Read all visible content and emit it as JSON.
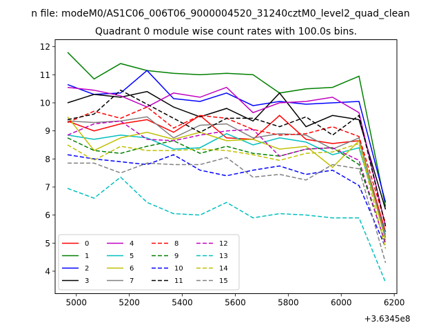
{
  "header": {
    "suptitle": "n file: modeM0/AS1C06_006T06_9000004520_31240cztM0_level2_quad_clean",
    "title": "Quadrant 0 module wise count rates with 100.0s bins."
  },
  "chart_data": {
    "type": "line",
    "title": "Quadrant 0 module wise count rates with 100.0s bins.",
    "xlabel": "",
    "ylabel": "",
    "x_offset_label": "+3.6345e8",
    "xlim": [
      4920,
      6210
    ],
    "ylim": [
      3.2,
      12.25
    ],
    "x_ticks": [
      5000,
      5200,
      5400,
      5600,
      5800,
      6000,
      6200
    ],
    "y_ticks": [
      4,
      5,
      6,
      7,
      8,
      9,
      10,
      11,
      12
    ],
    "grid": false,
    "legend_position": "lower-left",
    "legend_columns": 4,
    "x": [
      4967,
      5067,
      5167,
      5267,
      5367,
      5467,
      5567,
      5667,
      5767,
      5867,
      5967,
      6067,
      6167
    ],
    "series": [
      {
        "name": "0",
        "color": "#ff0000",
        "dash": "solid",
        "values": [
          9.35,
          9.0,
          9.25,
          9.4,
          8.95,
          9.55,
          8.75,
          8.7,
          9.55,
          8.7,
          8.55,
          8.65,
          5.4
        ]
      },
      {
        "name": "1",
        "color": "#008000",
        "dash": "solid",
        "values": [
          11.8,
          10.85,
          11.4,
          11.15,
          11.05,
          11.0,
          11.05,
          11.0,
          10.35,
          10.5,
          10.55,
          10.95,
          6.3
        ]
      },
      {
        "name": "2",
        "color": "#0000ff",
        "dash": "solid",
        "values": [
          10.65,
          10.3,
          10.35,
          11.15,
          10.15,
          10.05,
          10.35,
          9.9,
          10.05,
          9.95,
          10.0,
          10.05,
          6.45
        ]
      },
      {
        "name": "3",
        "color": "#000000",
        "dash": "solid",
        "values": [
          10.0,
          10.3,
          10.2,
          10.4,
          9.85,
          9.5,
          9.8,
          9.35,
          10.35,
          9.15,
          9.55,
          9.4,
          6.2
        ]
      },
      {
        "name": "4",
        "color": "#bf00bf",
        "dash": "solid",
        "values": [
          10.55,
          10.45,
          10.25,
          9.85,
          10.35,
          10.2,
          10.55,
          9.65,
          10.0,
          10.05,
          10.2,
          9.65,
          5.6
        ]
      },
      {
        "name": "5",
        "color": "#00bfbf",
        "dash": "solid",
        "values": [
          8.85,
          8.7,
          8.85,
          8.75,
          8.35,
          8.4,
          8.9,
          8.5,
          8.75,
          8.6,
          8.15,
          8.4,
          5.3
        ]
      },
      {
        "name": "6",
        "color": "#bfbf00",
        "dash": "solid",
        "values": [
          9.5,
          8.3,
          8.75,
          8.95,
          8.7,
          8.95,
          8.65,
          8.7,
          8.35,
          8.45,
          7.7,
          8.65,
          5.1
        ]
      },
      {
        "name": "7",
        "color": "#808080",
        "dash": "solid",
        "values": [
          9.35,
          9.3,
          9.35,
          9.5,
          8.75,
          9.2,
          9.25,
          8.75,
          8.9,
          8.85,
          8.35,
          8.75,
          5.2
        ]
      },
      {
        "name": "8",
        "color": "#ff0000",
        "dash": "dashed",
        "values": [
          9.3,
          9.7,
          9.45,
          9.85,
          9.1,
          9.55,
          9.45,
          9.05,
          8.85,
          8.9,
          9.15,
          8.8,
          5.7
        ]
      },
      {
        "name": "9",
        "color": "#008000",
        "dash": "dashed",
        "values": [
          8.75,
          8.3,
          8.2,
          8.45,
          8.65,
          8.2,
          8.45,
          8.2,
          8.1,
          8.35,
          8.4,
          7.8,
          5.0
        ]
      },
      {
        "name": "10",
        "color": "#0000ff",
        "dash": "dashed",
        "values": [
          8.15,
          8.0,
          7.9,
          7.8,
          8.15,
          7.6,
          7.4,
          7.6,
          7.75,
          7.45,
          7.6,
          7.05,
          4.85
        ]
      },
      {
        "name": "11",
        "color": "#000000",
        "dash": "dashed",
        "values": [
          9.4,
          9.6,
          10.45,
          9.95,
          9.45,
          8.95,
          9.45,
          9.45,
          9.15,
          9.5,
          8.85,
          9.55,
          5.6
        ]
      },
      {
        "name": "12",
        "color": "#bf00bf",
        "dash": "dashed",
        "values": [
          8.85,
          9.25,
          9.35,
          8.7,
          8.65,
          8.85,
          9.0,
          9.05,
          8.1,
          8.35,
          8.4,
          7.95,
          4.95
        ]
      },
      {
        "name": "13",
        "color": "#00bfbf",
        "dash": "dashed",
        "values": [
          6.95,
          6.6,
          7.35,
          6.45,
          6.05,
          6.0,
          6.45,
          5.9,
          6.05,
          6.0,
          5.9,
          5.9,
          3.6
        ]
      },
      {
        "name": "14",
        "color": "#bfbf00",
        "dash": "dashed",
        "values": [
          8.5,
          7.95,
          8.45,
          8.3,
          8.3,
          8.35,
          8.3,
          8.15,
          7.95,
          8.2,
          8.25,
          8.55,
          4.8
        ]
      },
      {
        "name": "15",
        "color": "#808080",
        "dash": "dashed",
        "values": [
          7.85,
          7.85,
          7.5,
          7.85,
          7.8,
          7.8,
          8.05,
          7.35,
          7.45,
          7.25,
          7.8,
          7.65,
          4.3
        ]
      }
    ]
  }
}
